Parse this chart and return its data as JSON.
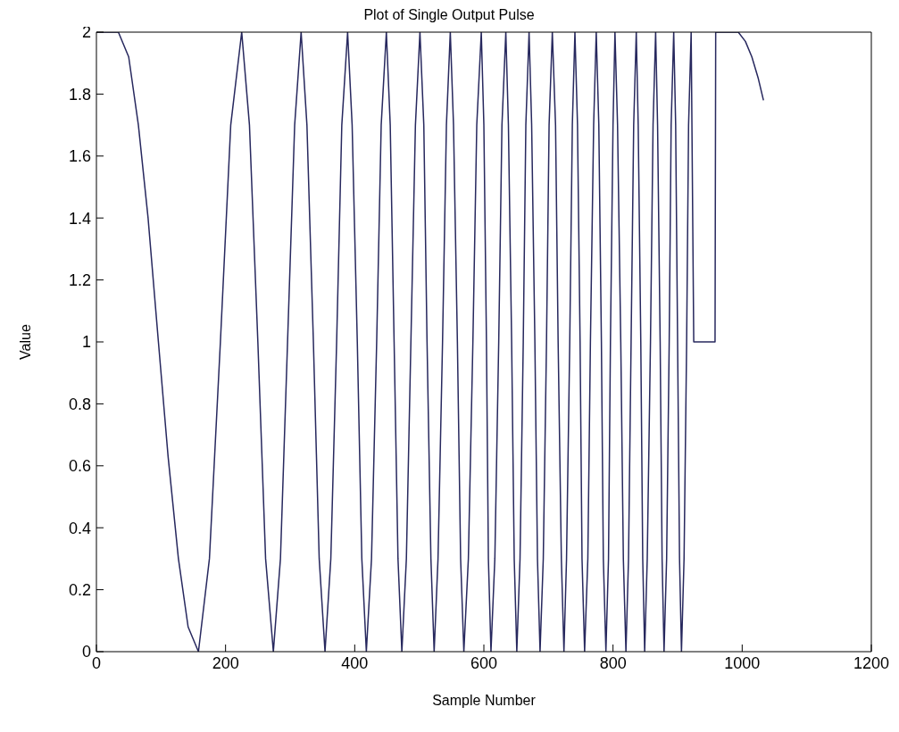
{
  "chart_data": {
    "type": "line",
    "title": "Plot of Single Output Pulse",
    "xlabel": "Sample Number",
    "ylabel": "Value",
    "xlim": [
      0,
      1200
    ],
    "xticks": [
      0,
      200,
      400,
      600,
      800,
      1000,
      1200
    ],
    "ylim": [
      0,
      2
    ],
    "yticks": [
      0,
      0.2,
      0.4,
      0.6,
      0.8,
      1,
      1.2,
      1.4,
      1.6,
      1.8,
      2
    ],
    "grid": false,
    "series": [
      {
        "color": "#27285e",
        "x": [
          0,
          34,
          50,
          65,
          80,
          96,
          111,
          127,
          142,
          158,
          175,
          192,
          208,
          225,
          237,
          250,
          262,
          274,
          285,
          296,
          307,
          317,
          326,
          336,
          345,
          354,
          363,
          372,
          380,
          389,
          396,
          404,
          411,
          418,
          426,
          434,
          441,
          449,
          455,
          461,
          467,
          473,
          480,
          487,
          494,
          501,
          507,
          512,
          518,
          523,
          529,
          536,
          542,
          548,
          553,
          559,
          564,
          569,
          576,
          583,
          589,
          596,
          600,
          604,
          607,
          611,
          617,
          623,
          628,
          634,
          638,
          643,
          647,
          651,
          656,
          661,
          665,
          670,
          674,
          679,
          683,
          687,
          692,
          697,
          701,
          706,
          711,
          715,
          720,
          724,
          728,
          733,
          737,
          741,
          745,
          749,
          752,
          756,
          761,
          765,
          770,
          774,
          778,
          782,
          785,
          789,
          793,
          796,
          800,
          803,
          807,
          812,
          816,
          820,
          824,
          828,
          832,
          836,
          839,
          843,
          846,
          849,
          853,
          858,
          862,
          866,
          869,
          873,
          876,
          879,
          883,
          887,
          890,
          894,
          897,
          900,
          903,
          906,
          910,
          914,
          917,
          921,
          925,
          958,
          959,
          994,
          1005,
          1015,
          1025,
          1033
        ],
        "values": [
          2,
          2,
          1.92,
          1.7,
          1.4,
          1,
          0.63,
          0.3,
          0.08,
          0,
          0.3,
          1,
          1.7,
          2,
          1.7,
          1,
          0.3,
          0,
          0.3,
          1,
          1.7,
          2,
          1.7,
          1,
          0.3,
          0,
          0.3,
          1,
          1.7,
          2,
          1.7,
          1,
          0.3,
          0,
          0.3,
          1,
          1.7,
          2,
          1.7,
          1,
          0.3,
          0,
          0.3,
          1,
          1.7,
          2,
          1.7,
          1,
          0.3,
          0,
          0.3,
          1,
          1.7,
          2,
          1.7,
          1,
          0.3,
          0,
          0.3,
          1,
          1.7,
          2,
          1.7,
          1,
          0.3,
          0,
          0.3,
          1,
          1.7,
          2,
          1.7,
          1,
          0.3,
          0,
          0.3,
          1,
          1.7,
          2,
          1.7,
          1,
          0.3,
          0,
          0.3,
          1,
          1.7,
          2,
          1.7,
          1,
          0.3,
          0,
          0.3,
          1,
          1.7,
          2,
          1.7,
          1,
          0.3,
          0,
          0.3,
          1,
          1.7,
          2,
          1.7,
          1,
          0.3,
          0,
          0.3,
          1,
          1.7,
          2,
          1.7,
          1,
          0.3,
          0,
          0.3,
          1,
          1.7,
          2,
          1.7,
          1,
          0.3,
          0,
          0.3,
          1,
          1.7,
          2,
          1.7,
          1,
          0.3,
          0,
          0.3,
          1,
          1.7,
          2,
          1.7,
          1,
          0.3,
          0,
          0.3,
          1,
          1.7,
          2,
          1,
          1,
          2,
          2,
          1.97,
          1.92,
          1.85,
          1.78
        ]
      }
    ]
  }
}
